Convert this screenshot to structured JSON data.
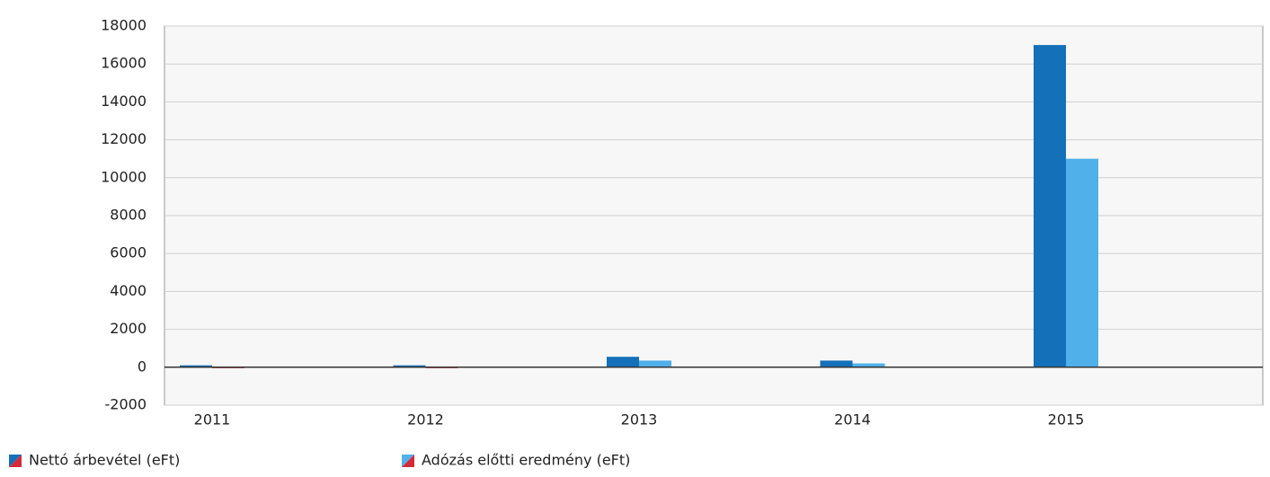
{
  "chart_data": {
    "type": "bar",
    "categories": [
      "2011",
      "2012",
      "2013",
      "2014",
      "2015"
    ],
    "series": [
      {
        "name": "Nettó árbevétel (eFt)",
        "color": "#1470b8",
        "values": [
          100,
          100,
          550,
          350,
          17000
        ]
      },
      {
        "name": "Adózás előtti eredmény (eFt)",
        "color": "#4fb0ea",
        "values": [
          -50,
          -50,
          350,
          200,
          11000
        ]
      }
    ],
    "negative_color": "#d42a3a",
    "ylim": [
      -2000,
      18000
    ],
    "yticks": [
      -2000,
      0,
      2000,
      4000,
      6000,
      8000,
      10000,
      12000,
      14000,
      16000,
      18000
    ],
    "grid": true
  }
}
